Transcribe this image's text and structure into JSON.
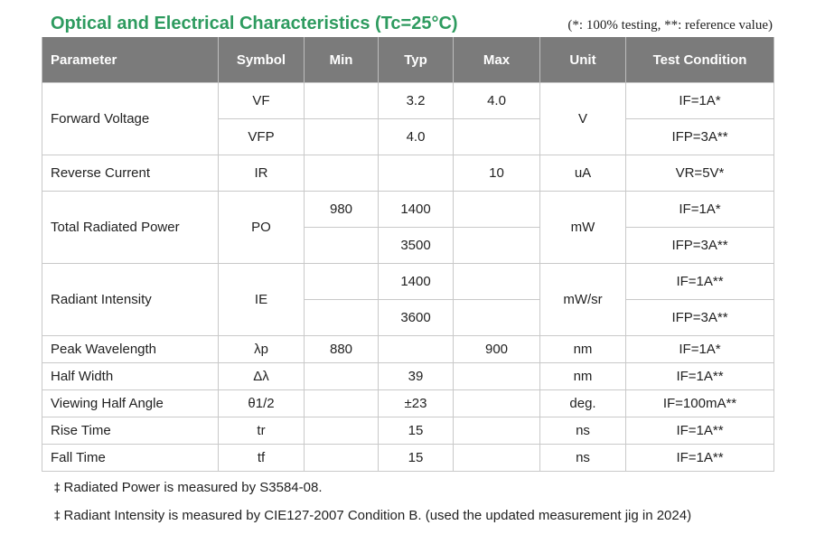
{
  "title": "Optical and Electrical Characteristics (Tc=25°C)",
  "note": "(*: 100% testing, **: reference value)",
  "headers": {
    "parameter": "Parameter",
    "symbol": "Symbol",
    "min": "Min",
    "typ": "Typ",
    "max": "Max",
    "unit": "Unit",
    "condition": "Test Condition"
  },
  "rows": {
    "forward_voltage": {
      "parameter": "Forward Voltage",
      "unit": "V",
      "sub": [
        {
          "symbol": "VF",
          "min": "",
          "typ": "3.2",
          "max": "4.0",
          "condition": "IF=1A*"
        },
        {
          "symbol": "VFP",
          "min": "",
          "typ": "4.0",
          "max": "",
          "condition": "IFP=3A**"
        }
      ]
    },
    "reverse_current": {
      "parameter": "Reverse Current",
      "symbol": "IR",
      "min": "",
      "typ": "",
      "max": "10",
      "unit": "uA",
      "condition": "VR=5V*"
    },
    "total_radiated_power": {
      "parameter": "Total Radiated Power",
      "symbol": "PO",
      "unit": "mW",
      "sub": [
        {
          "min": "980",
          "typ": "1400",
          "max": "",
          "condition": "IF=1A*"
        },
        {
          "min": "",
          "typ": "3500",
          "max": "",
          "condition": "IFP=3A**"
        }
      ]
    },
    "radiant_intensity": {
      "parameter": "Radiant Intensity",
      "symbol": "IE",
      "unit": "mW/sr",
      "sub": [
        {
          "min": "",
          "typ": "1400",
          "max": "",
          "condition": "IF=1A**"
        },
        {
          "min": "",
          "typ": "3600",
          "max": "",
          "condition": "IFP=3A**"
        }
      ]
    },
    "peak_wavelength": {
      "parameter": "Peak Wavelength",
      "symbol": "λp",
      "min": "880",
      "typ": "",
      "max": "900",
      "unit": "nm",
      "condition": "IF=1A*"
    },
    "half_width": {
      "parameter": "Half Width",
      "symbol": "Δλ",
      "min": "",
      "typ": "39",
      "max": "",
      "unit": "nm",
      "condition": "IF=1A**"
    },
    "viewing_half_angle": {
      "parameter": "Viewing Half Angle",
      "symbol": "θ1/2",
      "min": "",
      "typ": "±23",
      "max": "",
      "unit": "deg.",
      "condition": "IF=100mA**"
    },
    "rise_time": {
      "parameter": "Rise Time",
      "symbol": "tr",
      "min": "",
      "typ": "15",
      "max": "",
      "unit": "ns",
      "condition": "IF=1A**"
    },
    "fall_time": {
      "parameter": "Fall Time",
      "symbol": "tf",
      "min": "",
      "typ": "15",
      "max": "",
      "unit": "ns",
      "condition": "IF=1A**"
    }
  },
  "footnotes": {
    "mark": "‡",
    "items": [
      "Radiated Power is measured by S3584-08.",
      "Radiant Intensity is measured by CIE127-2007 Condition B. (used the updated measurement jig in 2024)"
    ]
  }
}
